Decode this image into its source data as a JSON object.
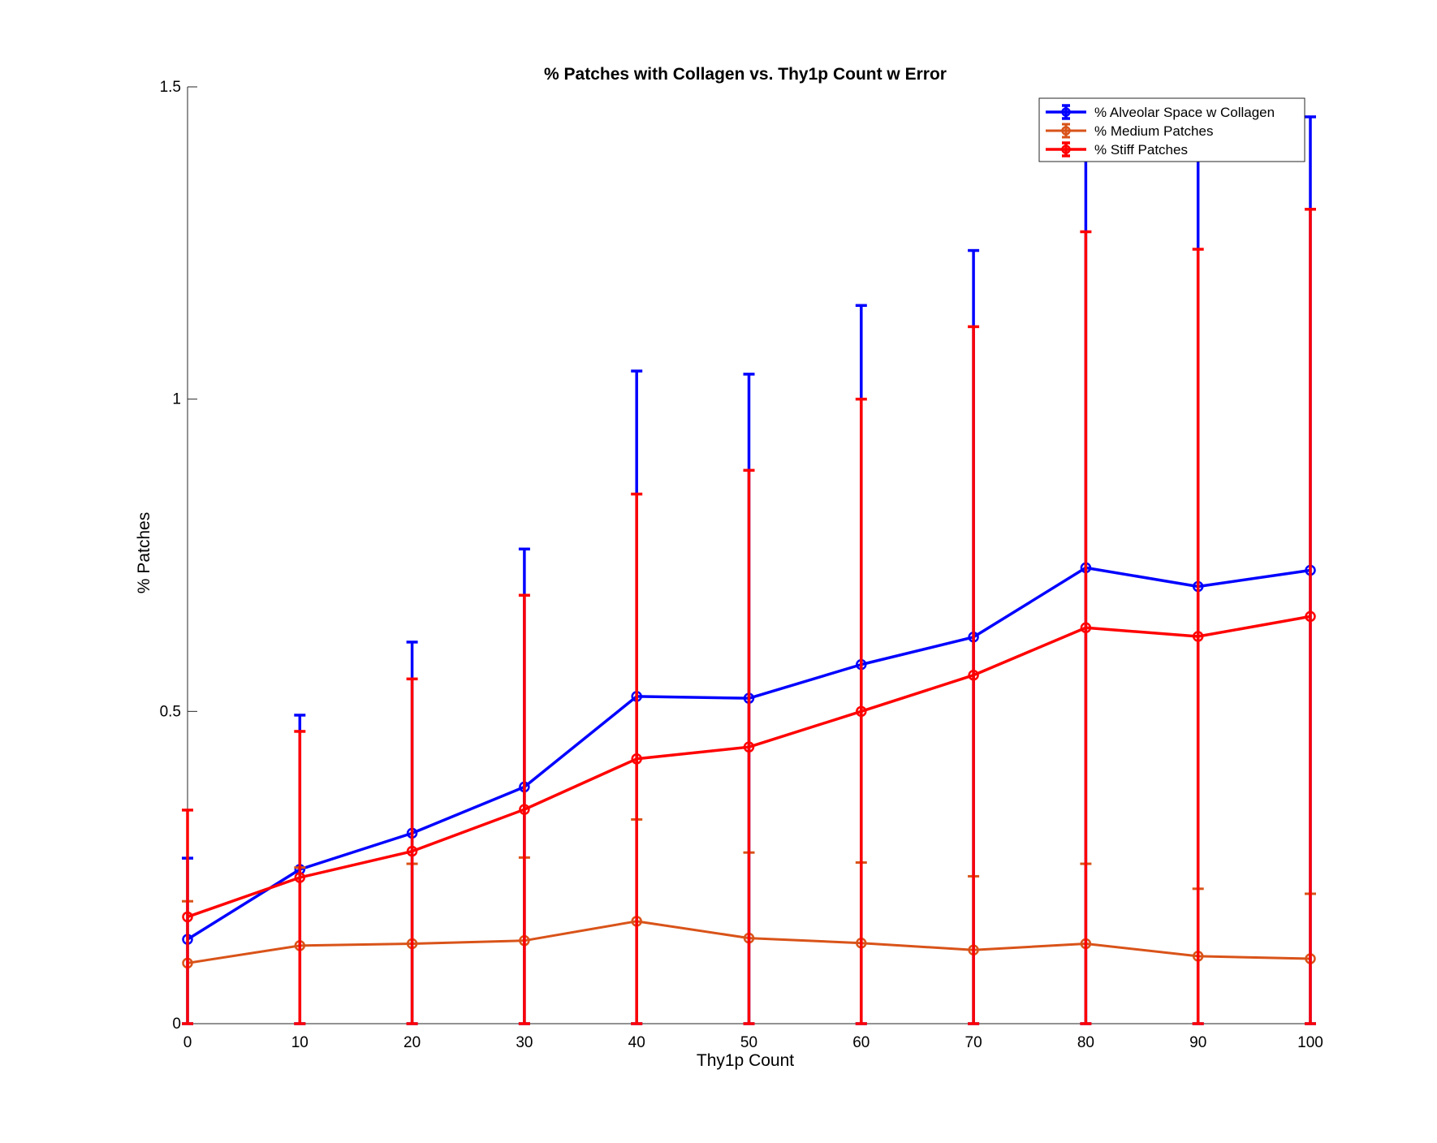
{
  "chart_data": {
    "type": "line",
    "title": "% Patches with Collagen vs. Thy1p Count w Error",
    "xlabel": "Thy1p Count",
    "ylabel": "% Patches",
    "xlim": [
      0,
      100
    ],
    "ylim": [
      0,
      1.5
    ],
    "x": [
      0,
      10,
      20,
      30,
      40,
      50,
      60,
      70,
      80,
      90,
      100
    ],
    "xticks": [
      0,
      10,
      20,
      30,
      40,
      50,
      60,
      70,
      80,
      90,
      100
    ],
    "yticks": [
      0,
      0.5,
      1,
      1.5
    ],
    "xtick_labels": [
      "0",
      "10",
      "20",
      "30",
      "40",
      "50",
      "60",
      "70",
      "80",
      "90",
      "100"
    ],
    "ytick_labels": [
      "0",
      "0.5",
      "1",
      "1.5"
    ],
    "grid": false,
    "legend_position": "top-right",
    "error_bars": true,
    "series": [
      {
        "name": "% Alveolar Space w Collagen",
        "color": "#0000ff",
        "values": [
          0.135,
          0.247,
          0.305,
          0.379,
          0.524,
          0.521,
          0.575,
          0.619,
          0.73,
          0.7,
          0.726
        ],
        "upper": [
          0.265,
          0.494,
          0.611,
          0.76,
          1.045,
          1.04,
          1.15,
          1.238,
          1.46,
          1.4,
          1.452
        ],
        "lower": [
          0,
          0,
          0,
          0,
          0,
          0,
          0,
          0,
          0,
          0,
          0
        ]
      },
      {
        "name": "% Medium Patches",
        "color": "#d95319",
        "values": [
          0.097,
          0.125,
          0.128,
          0.133,
          0.164,
          0.137,
          0.129,
          0.118,
          0.128,
          0.108,
          0.104
        ],
        "upper": [
          0.196,
          0.25,
          0.256,
          0.266,
          0.327,
          0.274,
          0.258,
          0.236,
          0.256,
          0.216,
          0.208
        ],
        "lower": [
          0,
          0,
          0,
          0,
          0,
          0,
          0,
          0,
          0,
          0,
          0
        ]
      },
      {
        "name": "% Stiff Patches",
        "color": "#ff0000",
        "values": [
          0.171,
          0.234,
          0.276,
          0.343,
          0.424,
          0.443,
          0.5,
          0.558,
          0.634,
          0.62,
          0.652
        ],
        "upper": [
          0.342,
          0.468,
          0.552,
          0.686,
          0.848,
          0.886,
          1.0,
          1.116,
          1.268,
          1.24,
          1.304
        ],
        "lower": [
          0,
          0,
          0,
          0,
          0,
          0,
          0,
          0,
          0,
          0,
          0
        ]
      }
    ]
  }
}
